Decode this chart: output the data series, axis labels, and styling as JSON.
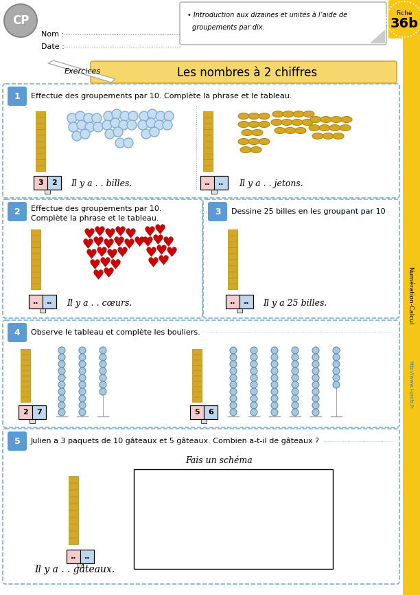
{
  "title": "Les nombres à 2 chiffres",
  "subtitle": "Exercices",
  "fiche_number": "36b",
  "cp_label": "CP",
  "nom_label": "Nom : ",
  "date_label": "Date : ",
  "objective_line1": "Introduction aux dizaines et unités à l’aide de",
  "objective_line2": "groupements par dix.",
  "side_label": "Numération-Calcul",
  "url_label": "http://www.i-profs.fr",
  "ex1_text": "Effectue des groupements par 10. Complète la phrase et le tableau.",
  "ex1_left_table": [
    "3",
    "2"
  ],
  "ex1_left_phrase": "Il y a . . billes.",
  "ex1_right_phrase": "Il y a . . jetons.",
  "ex1_right_table": [
    "..",
    ".."
  ],
  "ex2_text1": "Effectue des groupements par 10.",
  "ex2_text2": "Complète la phrase et le tableau.",
  "ex2_phrase": "Il y a . . cœurs.",
  "ex2_table": [
    "..",
    ".."
  ],
  "ex3_text": "Dessine 25 billes en les groupant par 10",
  "ex3_phrase": "Il y a 25 billes.",
  "ex3_table": [
    "..",
    ".."
  ],
  "ex4_text": "Observe le tableau et complète les bouliers.",
  "ex4_left_table": [
    "2",
    "7"
  ],
  "ex4_right_table": [
    "5",
    "6"
  ],
  "ex5_text": "Julien a 3 paquets de 10 gâteaux et 5 gâteaux. Combien a-t-il de gâteaux ?",
  "ex5_sub": "Fais un schéma",
  "ex5_phrase": "Il y a . . gâteaux.",
  "ex5_table": [
    "..",
    ".."
  ],
  "colors": {
    "yellow_bg": "#F5C518",
    "yellow_banner": "#F5D76E",
    "blue_label": "#5B9BD5",
    "blue_light": "#BDD7EE",
    "pink_tab": "#F4CCCC",
    "white": "#FFFFFF",
    "black": "#000000",
    "dash_color": "#7BAFD4",
    "red_heart": "#CC0000",
    "gold_bar": "#D4A827",
    "gold_dark": "#B8860B",
    "bead_fill": "#A8C8E0",
    "bead_edge": "#6090B0",
    "side_yellow": "#F5C518",
    "gray_cp": "#AAAAAA"
  }
}
